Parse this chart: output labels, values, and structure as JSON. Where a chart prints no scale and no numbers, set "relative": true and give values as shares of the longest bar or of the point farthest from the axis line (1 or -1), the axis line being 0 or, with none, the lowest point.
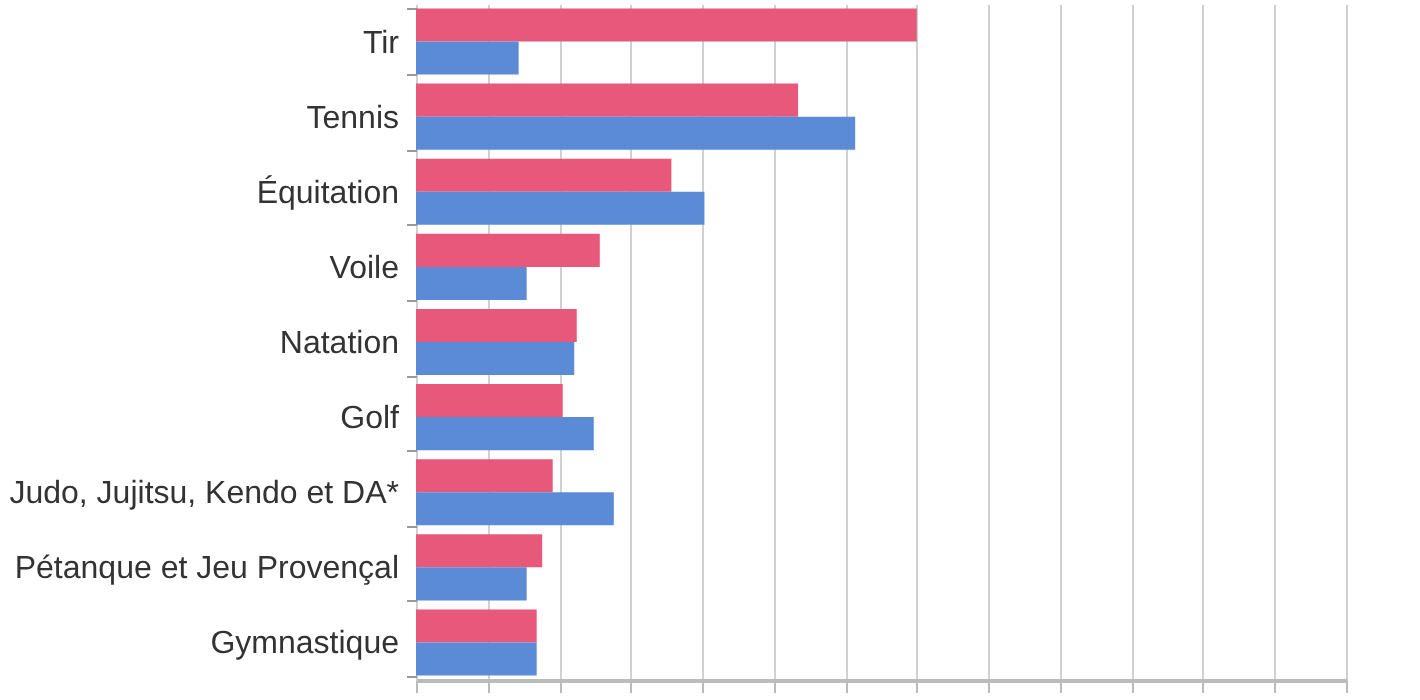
{
  "chart_data": {
    "type": "bar",
    "orientation": "horizontal",
    "relative": true,
    "grid": "x",
    "categories": [
      "Tir",
      "Tennis",
      "Équitation",
      "Voile",
      "Natation",
      "Golf",
      "Judo, Jujitsu, Kendo et DA*",
      "Pétanque et Jeu Provençal",
      "Gymnastique"
    ],
    "series": [
      {
        "color": "#e8587b",
        "values": [
          1,
          0.763,
          0.51,
          0.367,
          0.321,
          0.293,
          0.273,
          0.252,
          0.241
        ]
      },
      {
        "color": "#5b8bd6",
        "values": [
          0.205,
          0.877,
          0.576,
          0.221,
          0.316,
          0.355,
          0.395,
          0.221,
          0.241
        ]
      }
    ]
  }
}
